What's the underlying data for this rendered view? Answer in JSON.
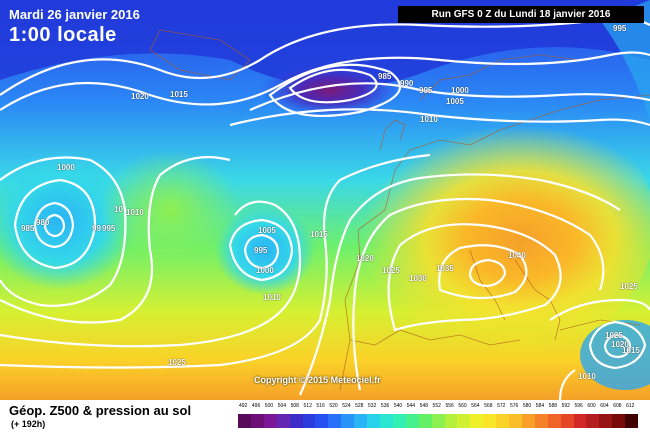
{
  "header": {
    "date": "Mardi 26 janvier 2016",
    "time": "1:00 locale",
    "run": "Run GFS 0 Z du Lundi 18 janvier 2016"
  },
  "copyright": "Copyright © 2015 Meteociel.fr",
  "footer": {
    "title": "Géop. Z500 & pression au sol",
    "subtitle": "(+ 192h)"
  },
  "scale": {
    "labels": [
      "492",
      "496",
      "500",
      "504",
      "508",
      "512",
      "516",
      "520",
      "524",
      "528",
      "532",
      "536",
      "540",
      "544",
      "548",
      "552",
      "556",
      "560",
      "564",
      "568",
      "572",
      "576",
      "580",
      "584",
      "588",
      "592",
      "596",
      "600",
      "604",
      "608",
      "612"
    ],
    "colors": [
      "#5a0a5a",
      "#6e0f78",
      "#7d1696",
      "#6427b4",
      "#3c2dc8",
      "#2d3cdc",
      "#2850f0",
      "#2870fa",
      "#2894fa",
      "#28b4f5",
      "#28d2eb",
      "#28e6d2",
      "#32f0b4",
      "#46f08c",
      "#64f064",
      "#8cf050",
      "#b4f03c",
      "#d2f032",
      "#f0f028",
      "#fae628",
      "#fad228",
      "#fabe28",
      "#faa028",
      "#f58228",
      "#f06428",
      "#e64628",
      "#d22828",
      "#b41e1e",
      "#961414",
      "#780a0a",
      "#400000"
    ]
  },
  "isobars": [
    "1020",
    "1015",
    "985",
    "990",
    "995",
    "1000",
    "1005",
    "1010",
    "1000",
    "980",
    "985",
    "99",
    "995",
    "10",
    "1010",
    "1005",
    "995",
    "1000",
    "1010",
    "1015",
    "1020",
    "1025",
    "1030",
    "1035",
    "1040",
    "1025",
    "1025",
    "1020",
    "1015",
    "1025",
    "1010",
    "995"
  ]
}
